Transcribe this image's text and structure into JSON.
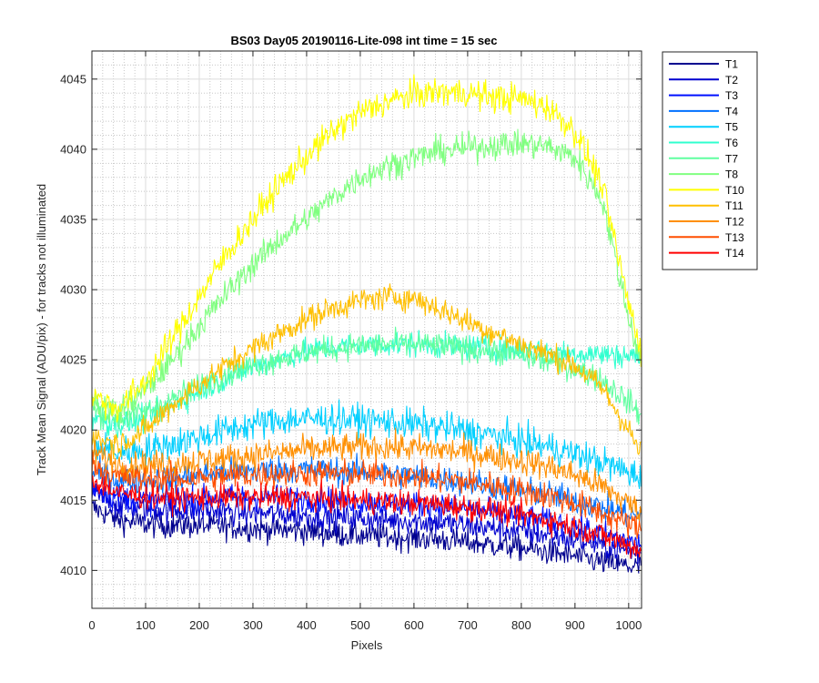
{
  "chart_data": {
    "type": "line",
    "title": "BS03 Day05 20190116-Lite-098 int time = 15 sec",
    "xlabel": "Pixels",
    "ylabel": "Track Mean Signal (ADU/pix) - for tracks not illuminated",
    "xlim": [
      0,
      1024
    ],
    "ylim": [
      4007.3,
      4047.0
    ],
    "xticks": [
      "0",
      "100",
      "200",
      "300",
      "400",
      "500",
      "600",
      "700",
      "800",
      "900",
      "1000"
    ],
    "yticks": [
      "4010",
      "4015",
      "4020",
      "4025",
      "4030",
      "4035",
      "4040",
      "4045"
    ],
    "grid": true,
    "minor_grid": true,
    "legend_position": "outside-top-right",
    "noise_note": "Each track is a dense, noisy per-pixel trace; values listed are the smoothed mean level at each x sample.",
    "x": [
      0,
      50,
      100,
      150,
      200,
      250,
      300,
      350,
      400,
      450,
      500,
      550,
      600,
      650,
      700,
      750,
      800,
      850,
      900,
      950,
      1000,
      1024
    ],
    "series": [
      {
        "name": "T1",
        "color": "#00008F",
        "noise": 1.3,
        "values": [
          4014.5,
          4013.6,
          4013.3,
          4013.2,
          4013.2,
          4013.1,
          4013.0,
          4012.9,
          4012.8,
          4012.6,
          4012.5,
          4012.4,
          4012.3,
          4012.2,
          4012.0,
          4011.8,
          4011.6,
          4011.3,
          4011.0,
          4010.6,
          4010.3,
          4010.2
        ]
      },
      {
        "name": "T2",
        "color": "#0000CF",
        "noise": 1.3,
        "values": [
          4015.5,
          4014.6,
          4014.4,
          4014.3,
          4014.3,
          4014.2,
          4014.1,
          4014.0,
          4013.9,
          4013.8,
          4013.7,
          4013.6,
          4013.5,
          4013.4,
          4013.2,
          4013.0,
          4012.8,
          4012.5,
          4012.2,
          4011.8,
          4011.4,
          4011.2
        ]
      },
      {
        "name": "T3",
        "color": "#0010FF",
        "noise": 1.3,
        "values": [
          4016.0,
          4015.2,
          4015.0,
          4015.0,
          4015.1,
          4015.2,
          4015.2,
          4015.2,
          4015.1,
          4015.0,
          4014.9,
          4014.8,
          4014.7,
          4014.6,
          4014.4,
          4014.1,
          4013.8,
          4013.5,
          4013.1,
          4012.6,
          4012.1,
          4011.8
        ]
      },
      {
        "name": "T4",
        "color": "#0070FF",
        "noise": 1.4,
        "values": [
          4017.0,
          4016.4,
          4016.4,
          4016.5,
          4016.8,
          4017.0,
          4017.1,
          4017.2,
          4017.2,
          4017.1,
          4017.0,
          4016.9,
          4016.7,
          4016.5,
          4016.3,
          4016.0,
          4015.7,
          4015.4,
          4015.0,
          4014.5,
          4014.0,
          4013.8
        ]
      },
      {
        "name": "T5",
        "color": "#00CFFF",
        "noise": 1.6,
        "values": [
          4019.0,
          4018.4,
          4018.6,
          4019.0,
          4019.5,
          4020.0,
          4020.4,
          4020.7,
          4020.8,
          4020.8,
          4020.7,
          4020.6,
          4020.4,
          4020.2,
          4019.9,
          4019.6,
          4019.2,
          4018.8,
          4018.3,
          4017.7,
          4017.0,
          4016.6
        ]
      },
      {
        "name": "T6",
        "color": "#30FFCF",
        "noise": 1.3,
        "values": [
          4021.0,
          4020.3,
          4020.8,
          4021.8,
          4022.8,
          4023.7,
          4024.5,
          4025.1,
          4025.6,
          4025.9,
          4026.0,
          4026.1,
          4026.1,
          4026.0,
          4025.9,
          4025.8,
          4025.7,
          4025.6,
          4025.5,
          4025.4,
          4025.3,
          4025.2
        ]
      },
      {
        "name": "T7",
        "color": "#60FFA0",
        "noise": 1.3,
        "values": [
          4021.5,
          4020.8,
          4021.3,
          4022.2,
          4023.2,
          4024.0,
          4024.6,
          4025.1,
          4025.5,
          4025.8,
          4026.0,
          4026.1,
          4026.1,
          4026.0,
          4025.8,
          4025.6,
          4025.3,
          4024.9,
          4024.4,
          4023.6,
          4022.0,
          4021.0
        ]
      },
      {
        "name": "T8",
        "color": "#80FF80",
        "noise": 1.4,
        "values": [
          4022.0,
          4021.3,
          4022.8,
          4025.0,
          4027.4,
          4029.7,
          4031.8,
          4033.6,
          4035.0,
          4036.6,
          4038.0,
          4038.8,
          4039.4,
          4039.9,
          4040.1,
          4040.3,
          4040.4,
          4040.2,
          4039.4,
          4036.5,
          4028.0,
          4024.8
        ]
      },
      {
        "name": "T10",
        "color": "#FFFF00",
        "noise": 1.5,
        "values": [
          4022.5,
          4021.5,
          4023.5,
          4026.5,
          4029.5,
          4032.5,
          4035.0,
          4037.5,
          4039.5,
          4041.3,
          4042.6,
          4043.4,
          4043.9,
          4044.1,
          4044.0,
          4043.7,
          4043.6,
          4043.0,
          4041.3,
          4037.5,
          4029.0,
          4025.5
        ]
      },
      {
        "name": "T11",
        "color": "#FFBF00",
        "noise": 1.3,
        "values": [
          4019.5,
          4019.0,
          4020.0,
          4021.8,
          4023.2,
          4024.6,
          4025.8,
          4026.9,
          4027.9,
          4028.7,
          4029.2,
          4029.5,
          4029.4,
          4028.6,
          4027.7,
          4026.9,
          4026.1,
          4025.4,
          4024.6,
          4023.0,
          4020.0,
          4018.2
        ]
      },
      {
        "name": "T12",
        "color": "#FF8F00",
        "noise": 1.4,
        "values": [
          4018.5,
          4017.5,
          4017.5,
          4017.6,
          4017.8,
          4018.0,
          4018.2,
          4018.4,
          4018.6,
          4018.7,
          4018.8,
          4018.8,
          4018.7,
          4018.6,
          4018.4,
          4018.1,
          4017.8,
          4017.4,
          4016.8,
          4016.0,
          4014.8,
          4014.2
        ]
      },
      {
        "name": "T13",
        "color": "#FF4F00",
        "noise": 1.4,
        "values": [
          4017.5,
          4016.6,
          4016.5,
          4016.5,
          4016.6,
          4016.7,
          4016.8,
          4016.9,
          4016.9,
          4016.9,
          4016.9,
          4016.8,
          4016.7,
          4016.5,
          4016.3,
          4016.0,
          4015.7,
          4015.3,
          4014.8,
          4014.1,
          4013.3,
          4012.9
        ]
      },
      {
        "name": "T14",
        "color": "#FF0000",
        "noise": 1.3,
        "values": [
          4016.5,
          4015.5,
          4015.3,
          4015.2,
          4015.2,
          4015.2,
          4015.2,
          4015.2,
          4015.2,
          4015.1,
          4015.0,
          4014.9,
          4014.8,
          4014.7,
          4014.5,
          4014.3,
          4014.0,
          4013.6,
          4013.1,
          4012.5,
          4011.8,
          4011.4
        ]
      }
    ]
  }
}
